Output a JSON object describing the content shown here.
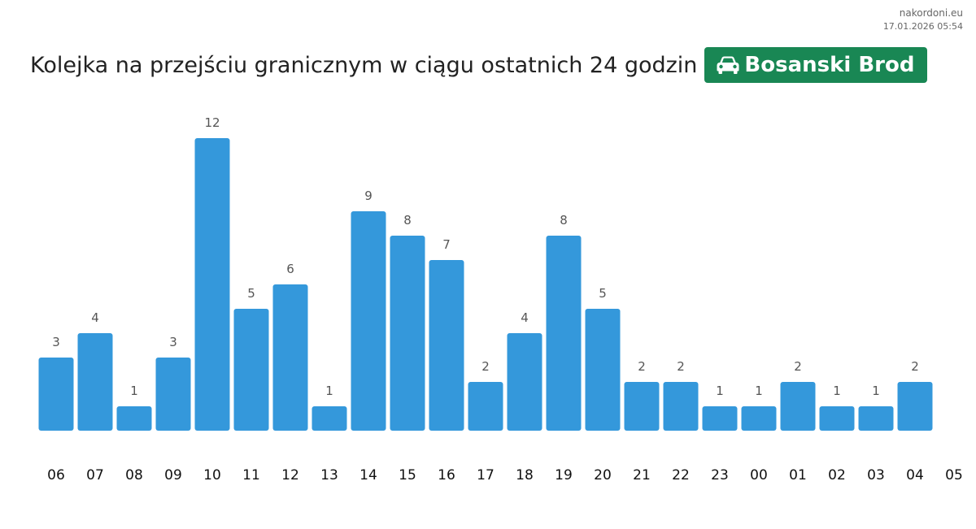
{
  "brand": {
    "site": "nakordoni.eu",
    "timestamp": "17.01.2026 05:54"
  },
  "header": {
    "title": "Kolejka na przejściu granicznym w ciągu ostatnich 24 godzin",
    "badge_label": "Bosanski Brod",
    "badge_icon": "car-icon",
    "badge_color": "#198754"
  },
  "chart_data": {
    "type": "bar",
    "categories": [
      "06",
      "07",
      "08",
      "09",
      "10",
      "11",
      "12",
      "13",
      "14",
      "15",
      "16",
      "17",
      "18",
      "19",
      "20",
      "21",
      "22",
      "23",
      "00",
      "01",
      "02",
      "03",
      "04"
    ],
    "values": [
      3,
      4,
      1,
      3,
      12,
      5,
      6,
      1,
      9,
      8,
      7,
      2,
      4,
      8,
      5,
      2,
      2,
      1,
      1,
      2,
      1,
      1,
      2
    ],
    "trailing_tick": "05",
    "title": "",
    "xlabel": "",
    "ylabel": "",
    "ylim": [
      0,
      12
    ],
    "grid": false,
    "legend": "none",
    "bar_color": "#3498db",
    "data_labels": true
  }
}
